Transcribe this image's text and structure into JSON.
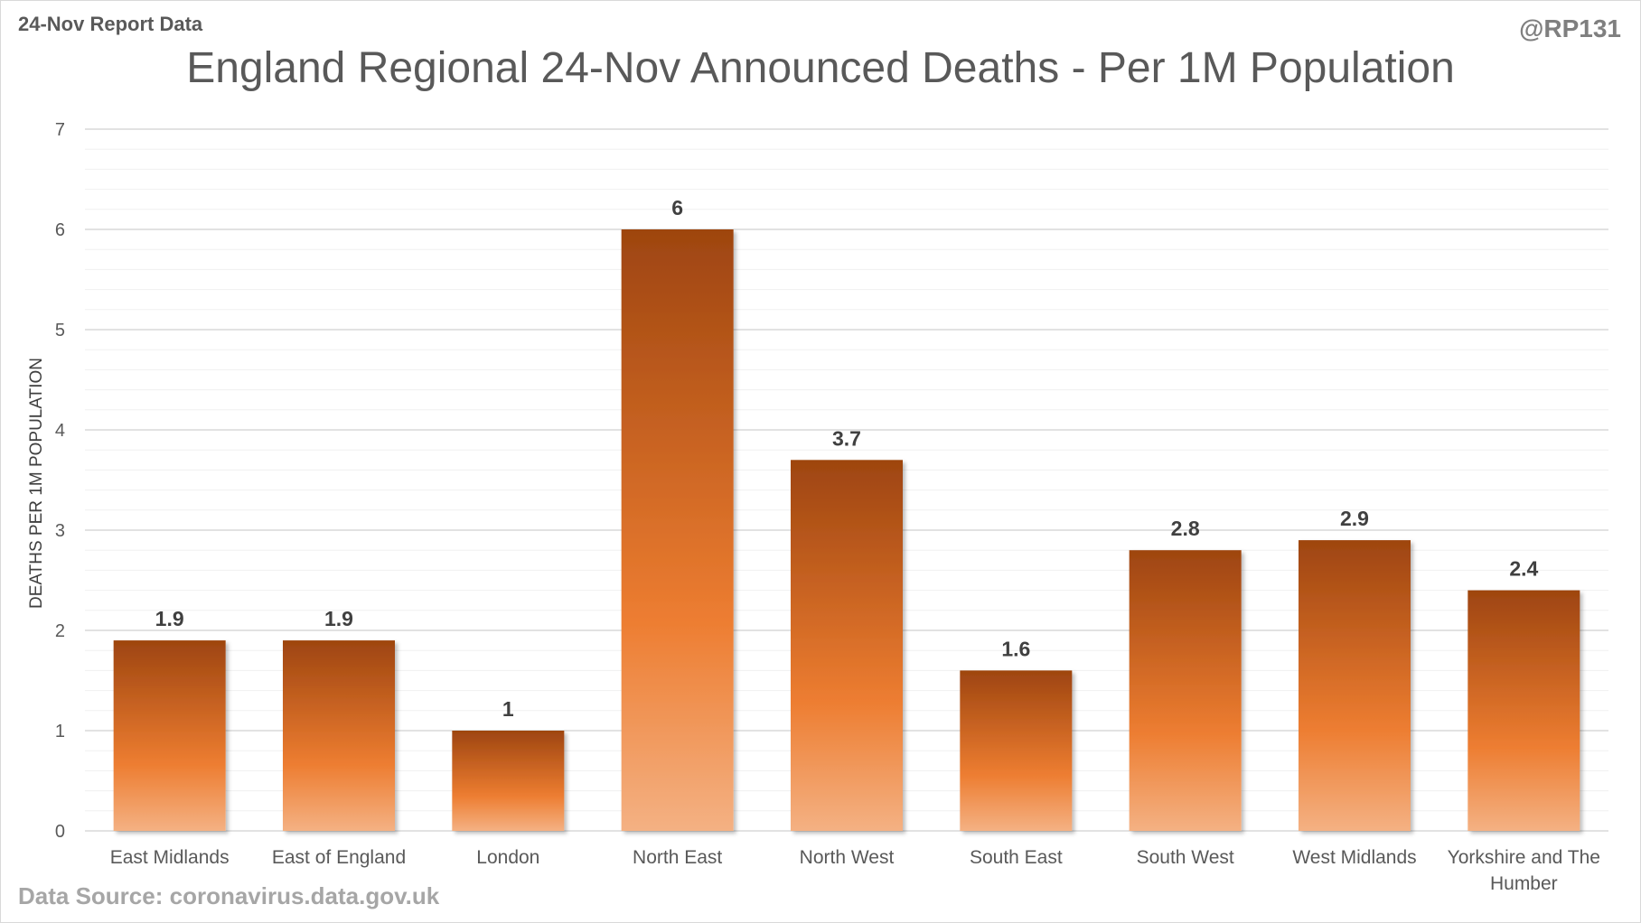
{
  "header": {
    "left_note": "24-Nov Report Data",
    "right_note": "@RP131"
  },
  "footer": {
    "source": "Data Source: coronavirus.data.gov.uk"
  },
  "chart_data": {
    "type": "bar",
    "title": "England Regional 24-Nov Announced Deaths - Per 1M Population",
    "xlabel": "",
    "ylabel": "DEATHS PER 1M POPULATION",
    "ylim": [
      0,
      7
    ],
    "yticks": [
      0,
      1,
      2,
      3,
      4,
      5,
      6,
      7
    ],
    "grid": true,
    "categories": [
      [
        "East Midlands"
      ],
      [
        "East of England"
      ],
      [
        "London"
      ],
      [
        "North East"
      ],
      [
        "North West"
      ],
      [
        "South East"
      ],
      [
        "South West"
      ],
      [
        "West Midlands"
      ],
      [
        "Yorkshire and The",
        "Humber"
      ]
    ],
    "values": [
      1.9,
      1.9,
      1,
      6,
      3.7,
      1.6,
      2.8,
      2.9,
      2.4
    ],
    "data_labels": [
      "1.9",
      "1.9",
      "1",
      "6",
      "3.7",
      "1.6",
      "2.8",
      "2.9",
      "2.4"
    ],
    "colors": {
      "bar_top": "#9e4510",
      "bar_mid": "#ed7d31",
      "bar_bottom": "#f4b183",
      "gridline": "#d9d9d9"
    }
  }
}
